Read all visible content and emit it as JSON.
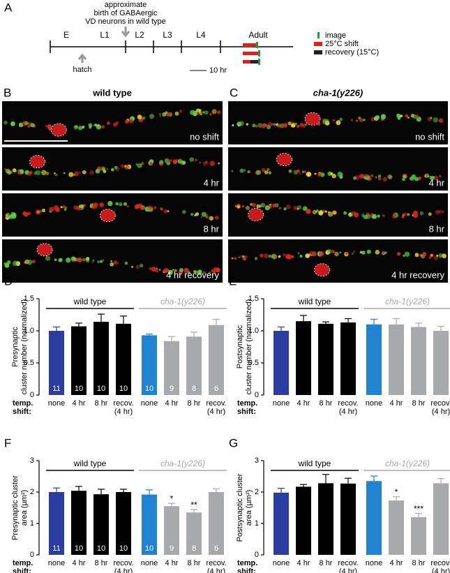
{
  "timeline": {
    "panel": "A",
    "stages": [
      "E",
      "L1",
      "L2",
      "L3",
      "L4"
    ],
    "adult": "Adult",
    "hatch": "hatch",
    "birth_note": [
      "approximate",
      "birth of GABAergic",
      "VD neurons in wild type"
    ],
    "scale": "10 hr",
    "legend": [
      "image",
      "25°C shift",
      "recovery (15°C)"
    ]
  },
  "micrographs": [
    {
      "panel": "B",
      "title": "wild type",
      "conditions": [
        "no shift",
        "4 hr",
        "8 hr",
        "4 hr recovery"
      ]
    },
    {
      "panel": "C",
      "title": "cha-1(y226)",
      "conditions": [
        "no shift",
        "4 hr",
        "8 hr",
        "4 hr recovery"
      ]
    }
  ],
  "chart_data": [
    {
      "type": "bar",
      "panel": "D",
      "y_label": [
        "Presynaptic",
        "cluster number (normalized)"
      ],
      "ylim": [
        0,
        1.5
      ],
      "yticks": [
        0,
        0.5,
        {
          "value": 1,
          "label": "1.0"
        },
        1.5
      ],
      "categories": [
        "none",
        "4 hr",
        "8 hr",
        "recov."
      ],
      "category_note": "(4 hr)",
      "row_label": [
        "temp.",
        "shift:"
      ],
      "series": [
        {
          "name": "wild type",
          "line_color": "#000000",
          "colors": [
            "#2b3d9e",
            "#000000",
            "#000000",
            "#000000"
          ],
          "values": [
            1.0,
            1.07,
            1.14,
            1.11
          ],
          "errors": [
            0.06,
            0.05,
            0.12,
            0.12
          ],
          "n": [
            11,
            10,
            10,
            10
          ]
        },
        {
          "name": "cha-1(y226)",
          "line_color": "#a7a9ac",
          "colors": [
            "#1f82d2",
            "#a7a9ac",
            "#a7a9ac",
            "#a7a9ac"
          ],
          "values": [
            0.93,
            0.84,
            0.91,
            1.09
          ],
          "errors": [
            0.02,
            0.07,
            0.07,
            0.09
          ],
          "n": [
            10,
            9,
            8,
            6
          ]
        }
      ]
    },
    {
      "type": "bar",
      "panel": "E",
      "y_label": [
        "Postsynaptic",
        "cluster number (normalized)"
      ],
      "ylim": [
        0,
        1.5
      ],
      "yticks": [
        0,
        0.5,
        {
          "value": 1,
          "label": "1.0"
        },
        1.5
      ],
      "categories": [
        "none",
        "4 hr",
        "8 hr",
        "recov."
      ],
      "category_note": "(4 hr)",
      "row_label": [
        "temp.",
        "shift:"
      ],
      "series": [
        {
          "name": "wild type",
          "line_color": "#000000",
          "colors": [
            "#2b3d9e",
            "#000000",
            "#000000",
            "#000000"
          ],
          "values": [
            1.0,
            1.15,
            1.11,
            1.13
          ],
          "errors": [
            0.06,
            0.09,
            0.03,
            0.06
          ]
        },
        {
          "name": "cha-1(y226)",
          "line_color": "#a7a9ac",
          "colors": [
            "#1f82d2",
            "#a7a9ac",
            "#a7a9ac",
            "#a7a9ac"
          ],
          "values": [
            1.1,
            1.1,
            1.06,
            1.0
          ],
          "errors": [
            0.08,
            0.09,
            0.06,
            0.07
          ]
        }
      ]
    },
    {
      "type": "bar",
      "panel": "F",
      "y_label": [
        "Presynaptic cluster",
        "area (µm²)"
      ],
      "ylim": [
        0,
        3
      ],
      "yticks": [
        0,
        1,
        2,
        3
      ],
      "categories": [
        "none",
        "4 hr",
        "8 hr",
        "recov."
      ],
      "category_note": "(4 hr)",
      "row_label": [
        "temp.",
        "shift:"
      ],
      "series": [
        {
          "name": "wild type",
          "line_color": "#000000",
          "colors": [
            "#2b3d9e",
            "#000000",
            "#000000",
            "#000000"
          ],
          "values": [
            2.0,
            2.04,
            1.93,
            2.0
          ],
          "errors": [
            0.13,
            0.14,
            0.16,
            0.09
          ],
          "n": [
            11,
            10,
            10,
            10
          ]
        },
        {
          "name": "cha-1(y226)",
          "line_color": "#a7a9ac",
          "colors": [
            "#1f82d2",
            "#a7a9ac",
            "#a7a9ac",
            "#a7a9ac"
          ],
          "values": [
            1.92,
            1.55,
            1.35,
            2.0
          ],
          "errors": [
            0.15,
            0.09,
            0.09,
            0.1
          ],
          "n": [
            10,
            9,
            8,
            6
          ],
          "significance": [
            null,
            "*",
            "**",
            null
          ]
        }
      ]
    },
    {
      "type": "bar",
      "panel": "G",
      "y_label": [
        "Postsynaptic cluster",
        "area (µm²)"
      ],
      "ylim": [
        0,
        3
      ],
      "yticks": [
        0,
        1,
        2,
        3
      ],
      "categories": [
        "none",
        "4 hr",
        "8 hr",
        "recov."
      ],
      "category_note": "(4 hr)",
      "row_label": [
        "temp.",
        "shift:"
      ],
      "series": [
        {
          "name": "wild type",
          "line_color": "#000000",
          "colors": [
            "#2b3d9e",
            "#000000",
            "#000000",
            "#000000"
          ],
          "values": [
            1.98,
            2.17,
            2.28,
            2.27
          ],
          "errors": [
            0.14,
            0.07,
            0.28,
            0.17
          ]
        },
        {
          "name": "cha-1(y226)",
          "line_color": "#a7a9ac",
          "colors": [
            "#1f82d2",
            "#a7a9ac",
            "#a7a9ac",
            "#a7a9ac"
          ],
          "values": [
            2.35,
            1.73,
            1.2,
            2.28
          ],
          "errors": [
            0.16,
            0.12,
            0.12,
            0.15
          ],
          "significance": [
            null,
            "*",
            "***",
            null
          ]
        }
      ]
    }
  ]
}
